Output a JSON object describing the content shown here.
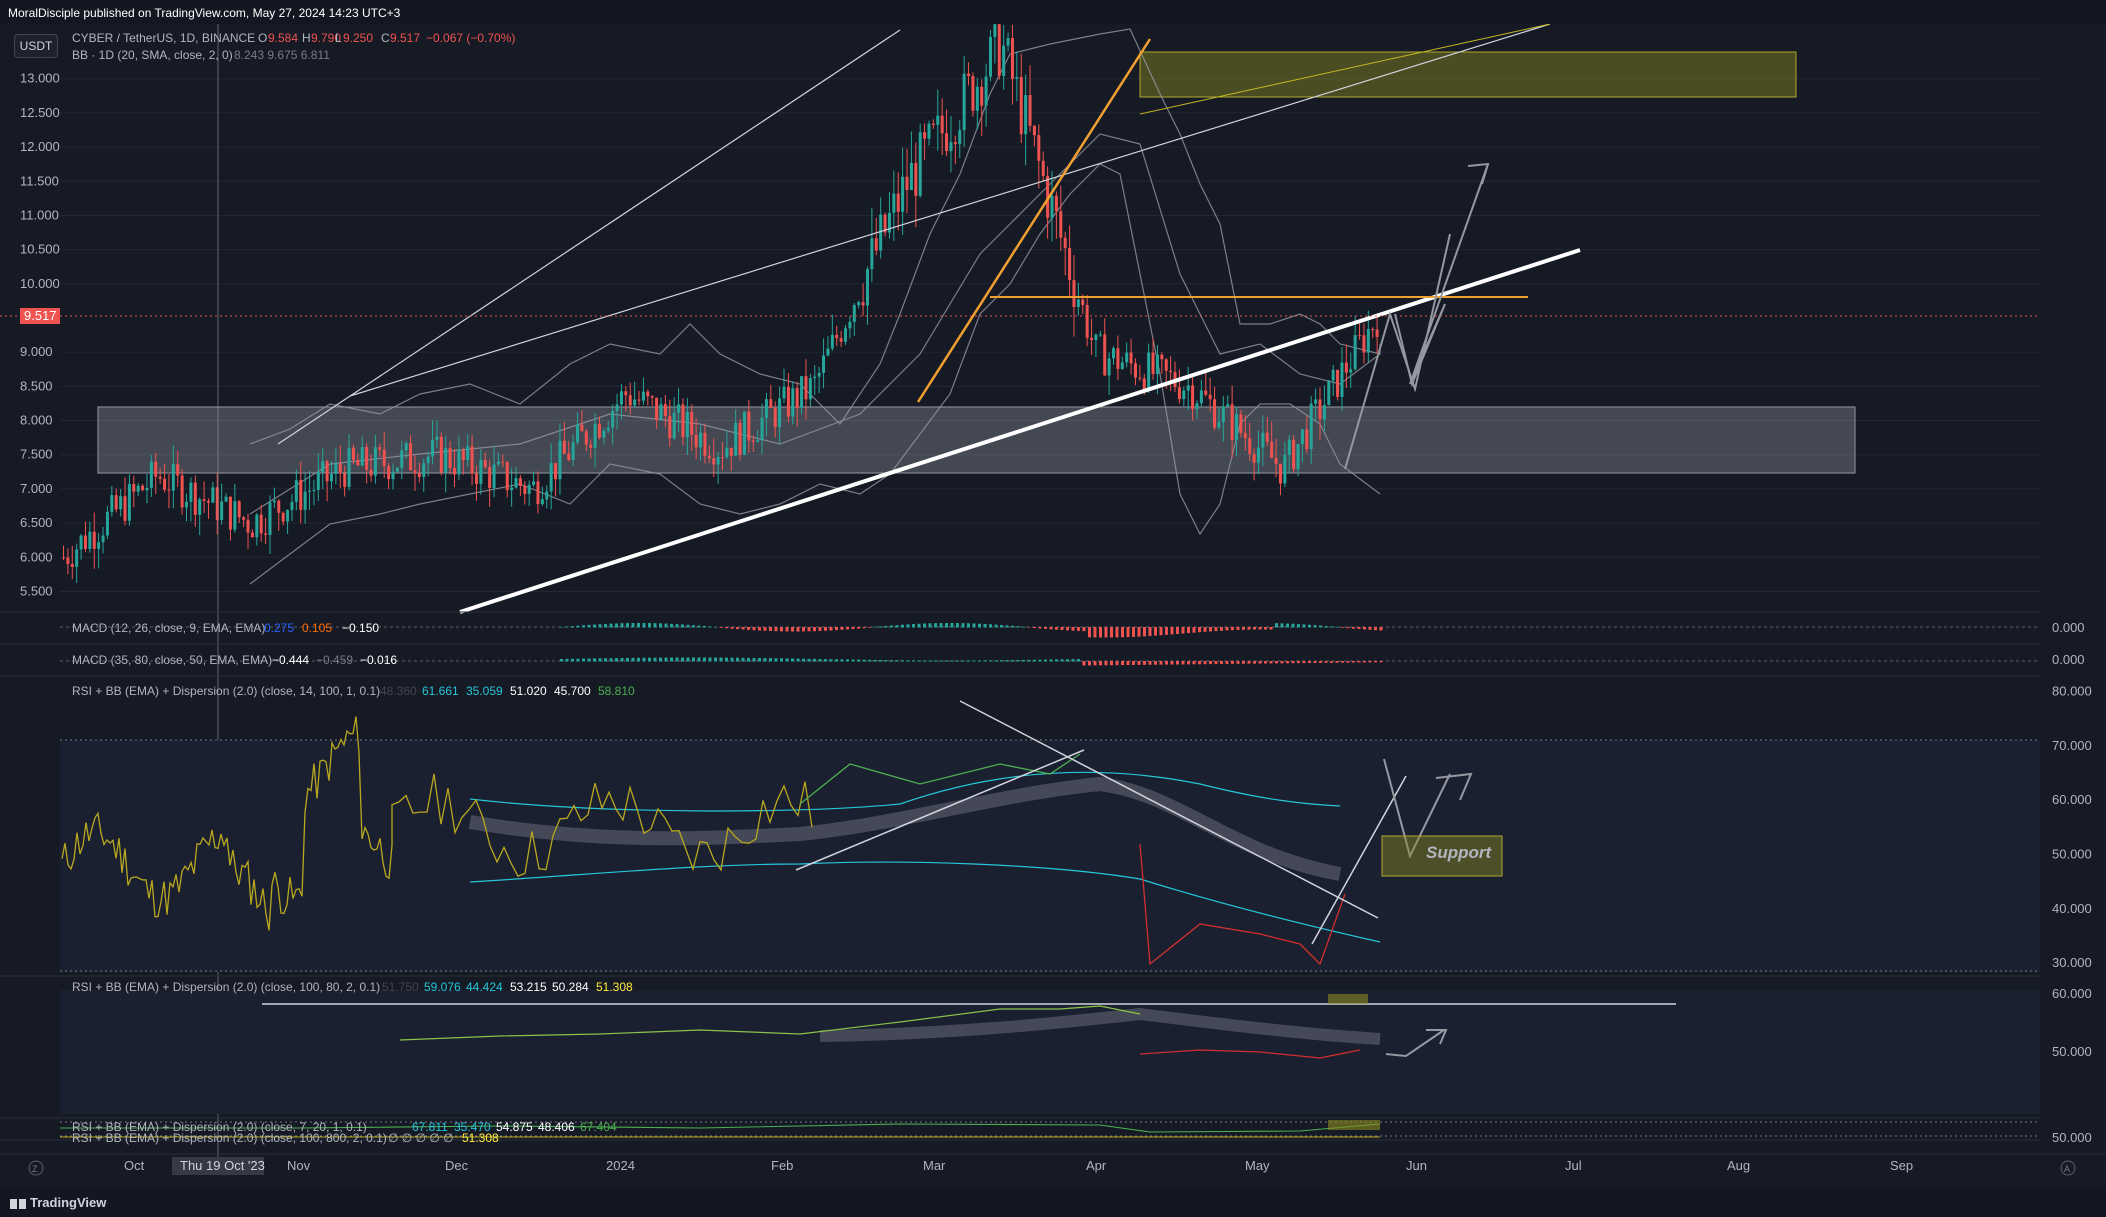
{
  "header": {
    "published": "MoralDisciple published on TradingView.com, May 27, 2024 14:23 UTC+3"
  },
  "footer": {
    "logo": "TradingView"
  },
  "toolbar": {
    "currency": "USDT"
  },
  "main_pane": {
    "symbol": "CYBER / TetherUS, 1D, BINANCE",
    "o_label": "O",
    "o_value": "9.584",
    "h_label": "H",
    "h_value": "9.790",
    "l_label": "L",
    "l_value": "9.250",
    "c_label": "C",
    "c_value": "9.517",
    "change": "−0.067 (−0.70%)",
    "bb_label": "BB · 1D (20, SMA, close, 2, 0)",
    "bb_values": "8.243  9.675  6.811",
    "last_price": "9.517",
    "y_ticks": [
      "13.000",
      "12.500",
      "12.000",
      "11.500",
      "11.000",
      "10.500",
      "10.000",
      "9.000",
      "8.500",
      "8.000",
      "7.500",
      "7.000",
      "6.500",
      "6.000",
      "5.500"
    ]
  },
  "macd1": {
    "label": "MACD (12, 26, close, 9, EMA, EMA)",
    "v1": "0.275",
    "v2": "0.105",
    "v3": "−0.150",
    "tick": "0.000"
  },
  "macd2": {
    "label": "MACD (35, 80, close, 50, EMA, EMA)",
    "v1": "−0.444",
    "v2": "−0.459",
    "v3": "−0.016",
    "tick": "0.000"
  },
  "rsi1": {
    "label": "RSI + BB (EMA) + Dispersion (2.0) (close, 14, 100, 1, 0.1)",
    "v0": "48.360",
    "v1": "61.661",
    "v2": "35.059",
    "v3": "51.020",
    "v4": "45.700",
    "v5": "58.810",
    "ticks": [
      "80.000",
      "70.000",
      "60.000",
      "50.000",
      "40.000",
      "30.000"
    ],
    "annotation": "Support"
  },
  "rsi2": {
    "label": "RSI + BB (EMA) + Dispersion (2.0) (close, 100, 80, 2, 0.1)",
    "v0": "51.750",
    "v1": "59.076",
    "v2": "44.424",
    "v3": "53.215",
    "v4": "50.284",
    "v5": "51.308",
    "ticks": [
      "60.000",
      "50.000"
    ]
  },
  "rsi3": {
    "label": "RSI + BB (EMA) + Dispersion (2.0) (close, 7, 20, 1, 0.1)",
    "v1": "67.811",
    "v2": "35.470",
    "v3": "54.875",
    "v4": "48.406",
    "v5": "67.404"
  },
  "rsi4": {
    "label": "RSI + BB (EMA) + Dispersion (2.0) (close, 100, 800, 2, 0.1)",
    "v": "∅  ∅  ∅  ∅  ∅",
    "v5": "51.308",
    "tick": "50.000"
  },
  "time_axis": {
    "labels": [
      "Oct",
      "Nov",
      "Dec",
      "2024",
      "Feb",
      "Mar",
      "Apr",
      "May",
      "Jun",
      "Jul",
      "Aug",
      "Sep"
    ],
    "crosshair": "Thu 19 Oct '23"
  },
  "colors": {
    "up": "#26a69a",
    "down": "#ef5350",
    "bg": "#161a25",
    "orange": "#f0a030",
    "yellowline": "#c8b820"
  },
  "icons": [
    "zoom-icon",
    "auto-scale-icon"
  ],
  "chart_data": {
    "type": "candlestick",
    "y_range": [
      5.2,
      13.8
    ],
    "series": [
      {
        "name": "CYBER / TetherUS, 1D, BINANCE",
        "close": [
          6.0,
          7.2,
          6.5,
          7.3,
          7.5,
          7.0,
          8.4,
          7.6,
          8.5,
          11.5,
          13.5,
          9.0,
          8.5,
          7.3,
          9.517
        ]
      }
    ],
    "x": [
      "Oct",
      "Nov",
      "Nov",
      "Dec",
      "Dec",
      "2024",
      "2024",
      "Feb",
      "Feb",
      "Mar",
      "Apr",
      "Apr",
      "May",
      "May",
      "Jun"
    ]
  }
}
